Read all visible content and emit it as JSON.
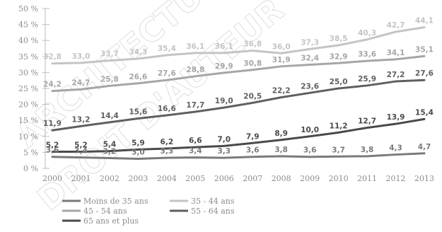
{
  "watermark": [
    "ARCHITECTURE DE",
    "DROIT D'AUTEUR"
  ],
  "chart_data": {
    "type": "line",
    "title": "",
    "xlabel": "",
    "ylabel": "",
    "x": [
      "2000",
      "2001",
      "2002",
      "2003",
      "2004",
      "2005",
      "2006",
      "2007",
      "2008",
      "2009",
      "2010",
      "2011",
      "2012",
      "2013"
    ],
    "ylim": [
      0,
      50
    ],
    "yticks": [
      "0 %",
      "5 %",
      "10 %",
      "15 %",
      "20 %",
      "25 %",
      "30 %",
      "35 %",
      "40 %",
      "45 %",
      "50 %"
    ],
    "legend_position": "bottom-left",
    "series": [
      {
        "name": "Moins de 35 ans",
        "color": "#7a7a7a",
        "labels": [
          "3,6",
          "3,4",
          "3,2",
          "3,0",
          "3,3",
          "3,4",
          "3,3",
          "3,6",
          "3,8",
          "3,6",
          "3,7",
          "3,8",
          "4,3",
          "4,7"
        ],
        "values": [
          3.6,
          3.4,
          3.2,
          3.0,
          3.3,
          3.4,
          3.3,
          3.6,
          3.8,
          3.6,
          3.7,
          3.8,
          4.3,
          4.7
        ]
      },
      {
        "name": "35 - 44 ans",
        "color": "#c4c4c4",
        "labels": [
          "32,8",
          "33,0",
          "33,7",
          "34,3",
          "35,4",
          "36,1",
          "36,1",
          "36,8",
          "36,0",
          "37,3",
          "38,5",
          "40,3",
          "42,7",
          "44,1"
        ],
        "values": [
          32.8,
          33.0,
          33.7,
          34.3,
          35.4,
          36.1,
          36.1,
          36.8,
          36.0,
          37.3,
          38.5,
          40.3,
          42.7,
          44.1
        ]
      },
      {
        "name": "45 - 54 ans",
        "color": "#a6a6a6",
        "labels": [
          "24,2",
          "24,7",
          "25,8",
          "26,6",
          "27,6",
          "28,8",
          "29,9",
          "30,8",
          "31,9",
          "32,4",
          "32,9",
          "33,6",
          "34,1",
          "35,1"
        ],
        "values": [
          24.2,
          24.7,
          25.8,
          26.6,
          27.6,
          28.8,
          29.9,
          30.8,
          31.9,
          32.4,
          32.9,
          33.6,
          34.1,
          35.1
        ]
      },
      {
        "name": "55 - 64 ans",
        "color": "#5f5f5f",
        "labels": [
          "11,9",
          "13,2",
          "14,4",
          "15,6",
          "16,6",
          "17,7",
          "19,0",
          "20,5",
          "22,2",
          "23,6",
          "25,0",
          "25,9",
          "27,2",
          "27,6"
        ],
        "values": [
          11.9,
          13.2,
          14.4,
          15.6,
          16.6,
          17.7,
          19.0,
          20.5,
          22.2,
          23.6,
          25.0,
          25.9,
          27.2,
          27.6
        ]
      },
      {
        "name": "65 ans et plus",
        "color": "#4a4a4a",
        "labels": [
          "5,2",
          "5,2",
          "5,4",
          "5,9",
          "6,2",
          "6,6",
          "7,0",
          "7,9",
          "8,9",
          "10,0",
          "11,2",
          "12,7",
          "13,9",
          "15,4"
        ],
        "values": [
          5.2,
          5.2,
          5.4,
          5.9,
          6.2,
          6.6,
          7.0,
          7.9,
          8.9,
          10.0,
          11.2,
          12.7,
          13.9,
          15.4
        ]
      }
    ]
  }
}
